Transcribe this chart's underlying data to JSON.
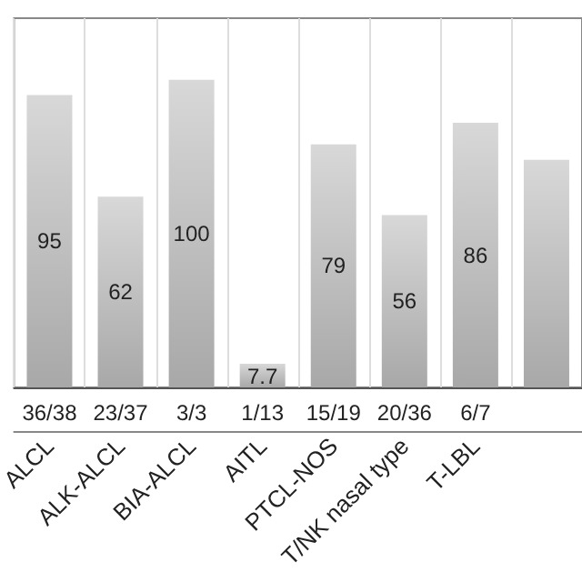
{
  "chart_data": {
    "type": "bar",
    "categories": [
      "ALCL",
      "ALK-ALCL",
      "BIA-ALCL",
      "AITL",
      "PTCL-NOS",
      "T/NK nasal type",
      "T-LBL",
      null
    ],
    "values": [
      95,
      62,
      100,
      7.7,
      79,
      56,
      86,
      74
    ],
    "value_labels": [
      "95",
      "62",
      "100",
      "7.7",
      "79",
      "56",
      "86",
      null
    ],
    "color": "#a8a8a8",
    "grid": "x",
    "annotations": [
      "36/38",
      "23/37",
      "3/3",
      "1/13",
      "15/19",
      "20/36",
      "6/7"
    ]
  }
}
